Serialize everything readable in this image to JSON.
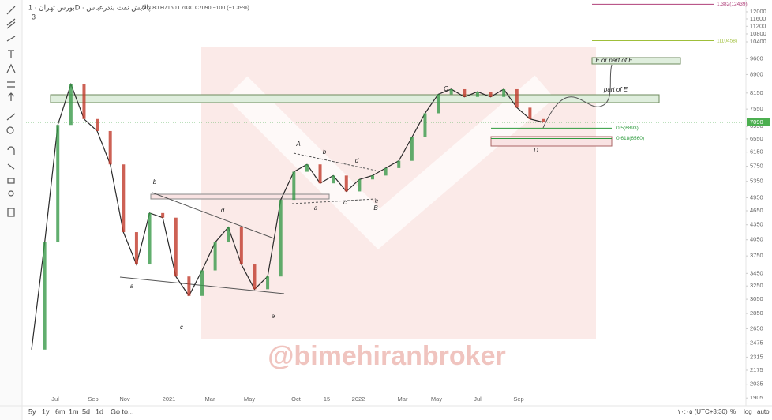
{
  "header": {
    "symbol": "بورس تهران · 1D · پالایش نفت بندرعباس",
    "ohlc": "O7080 H7160 L7030 C7090 −100 (−1.39%)",
    "indicators": "3"
  },
  "chart_data": {
    "type": "line",
    "log_scale": true,
    "color": "#2a2a2a",
    "categories": [
      null,
      null,
      null,
      null,
      null,
      null,
      null,
      null,
      null,
      null,
      null,
      null,
      null,
      null,
      null,
      null,
      null,
      null,
      null,
      null,
      null,
      null,
      null,
      null,
      null,
      null,
      null,
      null,
      null,
      null,
      null,
      null,
      null,
      null,
      null,
      null,
      null,
      null,
      null,
      null
    ],
    "values": [
      2400,
      4000,
      7000,
      8500,
      7200,
      6800,
      5800,
      4200,
      3600,
      4600,
      4500,
      3400,
      3100,
      3500,
      4000,
      4300,
      3600,
      3200,
      3400,
      4900,
      5600,
      5800,
      5300,
      5500,
      5100,
      5400,
      5500,
      5700,
      5900,
      6600,
      7400,
      8100,
      8300,
      8000,
      8200,
      8000,
      8300,
      7600,
      7200,
      7090
    ],
    "ylim": [
      1850,
      12600
    ],
    "yticks": [
      12000,
      11600,
      11200,
      10800,
      10400,
      9600,
      8900,
      8150,
      7550,
      6950,
      6550,
      6150,
      5750,
      5350,
      4950,
      4650,
      4350,
      4050,
      3750,
      3450,
      3250,
      3050,
      2850,
      2650,
      2475,
      2315,
      2175,
      2035,
      1905
    ],
    "last_price": 7090,
    "x_labels": [
      "Jul",
      "Sep",
      "Nov",
      "2021",
      "Mar",
      "May",
      "Oct",
      "15",
      "2022",
      "Mar",
      "May",
      "Jul",
      "Sep"
    ],
    "fib_levels": [
      {
        "label": "1.382(12439)",
        "value": 12439,
        "color": "#b0407a"
      },
      {
        "label": "1(10458)",
        "value": 10458,
        "color": "#9fbf3a"
      },
      {
        "label": "0.5(6893)",
        "value": 6893,
        "color": "#2e9b3e"
      },
      {
        "label": "0.618(6560)",
        "value": 6560,
        "color": "#2e9b3e"
      }
    ],
    "annotations": [
      "a",
      "b",
      "c",
      "d",
      "e",
      "A",
      "b",
      "a",
      "c",
      "d",
      "e",
      "B",
      "C",
      "D",
      "E or part of E",
      "part of E"
    ],
    "watermark": "@bimehiranbroker"
  },
  "toolbar": {
    "ranges": [
      "5y",
      "1y",
      "6m",
      "1m",
      "5d",
      "1d"
    ],
    "goto": "Go to...",
    "time": "۱۰:۰۵ (UTC+3:30)",
    "options": [
      "%",
      "log",
      "auto"
    ]
  }
}
